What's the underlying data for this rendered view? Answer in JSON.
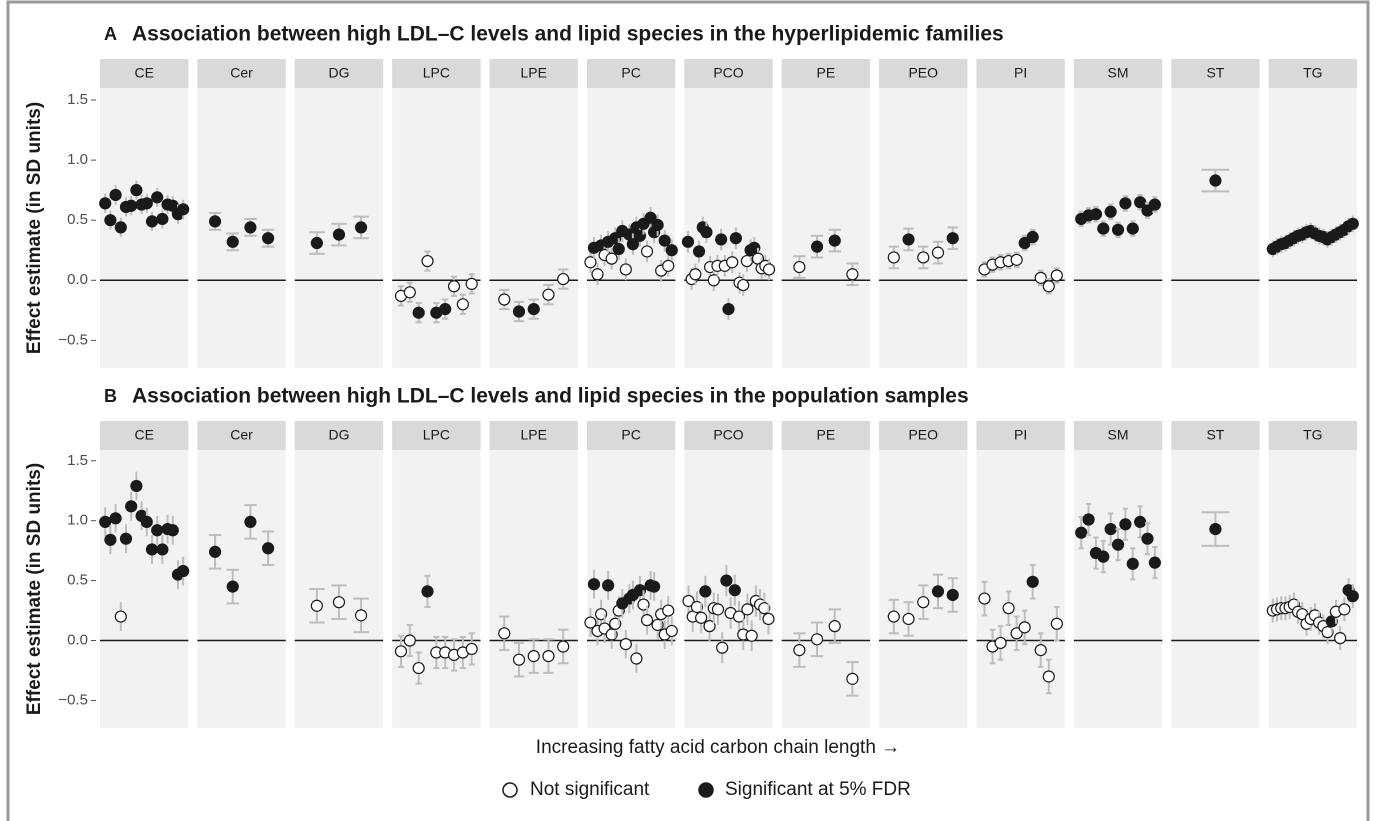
{
  "chart_data": [
    {
      "type": "pointrange",
      "panel": "A",
      "title": "Association between high LDL–C levels and lipid species in the hyperlipidemic families",
      "y_label": "Effect estimate (in SD units)",
      "ylim": [
        -0.73,
        1.6
      ],
      "yticks": [
        {
          "value": -0.5,
          "label": "−0.5"
        },
        {
          "value": 0,
          "label": "0.0"
        },
        0.5,
        {
          "value": 1,
          "label": "1.0"
        },
        1.5
      ],
      "facets": [
        {
          "name": "CE",
          "error": 0.08,
          "values": [
            0.64,
            0.5,
            0.71,
            0.44,
            0.61,
            0.62,
            0.75,
            0.63,
            0.64,
            0.49,
            0.69,
            0.51,
            0.63,
            0.62,
            0.55,
            0.59
          ],
          "significant": [
            1,
            1,
            1,
            1,
            1,
            1,
            1,
            1,
            1,
            1,
            1,
            1,
            1,
            1,
            1,
            1
          ]
        },
        {
          "name": "Cer",
          "error": 0.07,
          "values": [
            0.49,
            0.32,
            0.44,
            0.35
          ],
          "significant": [
            1,
            1,
            1,
            1
          ]
        },
        {
          "name": "DG",
          "error": 0.09,
          "values": [
            0.31,
            0.38,
            0.44
          ],
          "significant": [
            1,
            1,
            1
          ]
        },
        {
          "name": "LPC",
          "error": 0.08,
          "values": [
            -0.13,
            -0.1,
            -0.27,
            0.16,
            -0.27,
            -0.24,
            -0.05,
            -0.2,
            -0.03
          ],
          "significant": [
            0,
            0,
            1,
            0,
            1,
            1,
            0,
            0,
            0
          ]
        },
        {
          "name": "LPE",
          "error": 0.08,
          "values": [
            -0.16,
            -0.26,
            -0.24,
            -0.12,
            0.01
          ],
          "significant": [
            0,
            1,
            1,
            0,
            0
          ]
        },
        {
          "name": "PC",
          "error": 0.09,
          "values": [
            0.15,
            0.27,
            0.05,
            0.29,
            0.21,
            0.32,
            0.18,
            0.35,
            0.26,
            0.41,
            0.09,
            0.38,
            0.3,
            0.44,
            0.37,
            0.47,
            0.24,
            0.52,
            0.4,
            0.46,
            0.08,
            0.33,
            0.12,
            0.25
          ],
          "significant": [
            0,
            1,
            0,
            1,
            0,
            1,
            0,
            1,
            1,
            1,
            0,
            1,
            1,
            1,
            1,
            1,
            0,
            1,
            1,
            1,
            0,
            1,
            0,
            1
          ]
        },
        {
          "name": "PCO",
          "error": 0.09,
          "values": [
            0.32,
            0.01,
            0.05,
            0.24,
            0.44,
            0.4,
            0.11,
            0.0,
            0.12,
            0.34,
            0.12,
            -0.24,
            0.15,
            0.35,
            -0.02,
            -0.04,
            0.16,
            0.25,
            0.27,
            0.18,
            0.1,
            0.12,
            0.09
          ],
          "significant": [
            1,
            0,
            0,
            1,
            1,
            1,
            0,
            0,
            0,
            1,
            0,
            1,
            0,
            1,
            0,
            0,
            0,
            1,
            1,
            0,
            0,
            0,
            0
          ]
        },
        {
          "name": "PE",
          "error": 0.09,
          "values": [
            0.11,
            0.28,
            0.33,
            0.05
          ],
          "significant": [
            0,
            1,
            1,
            0
          ]
        },
        {
          "name": "PEO",
          "error": 0.09,
          "values": [
            0.19,
            0.34,
            0.19,
            0.23,
            0.35
          ],
          "significant": [
            0,
            1,
            0,
            0,
            1
          ]
        },
        {
          "name": "PI",
          "error": 0.06,
          "values": [
            0.09,
            0.13,
            0.15,
            0.16,
            0.17,
            0.31,
            0.36,
            0.02,
            -0.05,
            0.04
          ],
          "significant": [
            0,
            0,
            0,
            0,
            0,
            1,
            1,
            0,
            0,
            0
          ]
        },
        {
          "name": "SM",
          "error": 0.06,
          "values": [
            0.51,
            0.54,
            0.55,
            0.43,
            0.57,
            0.42,
            0.64,
            0.43,
            0.65,
            0.58,
            0.63
          ],
          "significant": [
            1,
            1,
            1,
            1,
            1,
            1,
            1,
            1,
            1,
            1,
            1
          ]
        },
        {
          "name": "ST",
          "error": 0.09,
          "values": [
            0.83
          ],
          "significant": [
            1
          ]
        },
        {
          "name": "TG",
          "error": 0.07,
          "values": [
            0.26,
            0.28,
            0.3,
            0.31,
            0.33,
            0.35,
            0.37,
            0.38,
            0.4,
            0.41,
            0.39,
            0.37,
            0.36,
            0.34,
            0.36,
            0.38,
            0.4,
            0.42,
            0.45,
            0.47
          ],
          "significant": [
            1,
            1,
            1,
            1,
            1,
            1,
            1,
            1,
            1,
            1,
            1,
            1,
            1,
            1,
            1,
            1,
            1,
            1,
            1,
            1
          ]
        }
      ]
    },
    {
      "type": "pointrange",
      "panel": "B",
      "title": "Association between high LDL–C levels and lipid species in the population samples",
      "y_label": "Effect estimate (in SD units)",
      "ylim": [
        -0.73,
        1.59
      ],
      "yticks": [
        {
          "value": -0.5,
          "label": "−0.5"
        },
        {
          "value": 0,
          "label": "0.0"
        },
        0.5,
        {
          "value": 1,
          "label": "1.0"
        },
        1.5
      ],
      "facets": [
        {
          "name": "CE",
          "error": 0.12,
          "values": [
            0.99,
            0.84,
            1.02,
            0.2,
            0.85,
            1.12,
            1.29,
            1.04,
            0.99,
            0.76,
            0.92,
            0.76,
            0.93,
            0.92,
            0.55,
            0.58
          ],
          "significant": [
            1,
            1,
            1,
            0,
            1,
            1,
            1,
            1,
            1,
            1,
            1,
            1,
            1,
            1,
            1,
            1
          ]
        },
        {
          "name": "Cer",
          "error": 0.14,
          "values": [
            0.74,
            0.45,
            0.99,
            0.77
          ],
          "significant": [
            1,
            1,
            1,
            1
          ]
        },
        {
          "name": "DG",
          "error": 0.14,
          "values": [
            0.29,
            0.32,
            0.21
          ],
          "significant": [
            0,
            0,
            0
          ]
        },
        {
          "name": "LPC",
          "error": 0.13,
          "values": [
            -0.09,
            0.0,
            -0.23,
            0.41,
            -0.1,
            -0.1,
            -0.12,
            -0.1,
            -0.07
          ],
          "significant": [
            0,
            0,
            0,
            1,
            0,
            0,
            0,
            0,
            0
          ]
        },
        {
          "name": "LPE",
          "error": 0.14,
          "values": [
            0.06,
            -0.16,
            -0.13,
            -0.13,
            -0.05
          ],
          "significant": [
            0,
            0,
            0,
            0,
            0
          ]
        },
        {
          "name": "PC",
          "error": 0.12,
          "values": [
            0.15,
            0.47,
            0.08,
            0.22,
            0.1,
            0.46,
            0.05,
            0.14,
            0.25,
            0.31,
            -0.03,
            0.35,
            0.38,
            -0.15,
            0.42,
            0.3,
            0.17,
            0.46,
            0.45,
            0.13,
            0.22,
            0.05,
            0.25,
            0.08
          ],
          "significant": [
            0,
            1,
            0,
            0,
            0,
            1,
            0,
            0,
            0,
            1,
            0,
            1,
            1,
            0,
            1,
            0,
            0,
            1,
            1,
            0,
            0,
            0,
            0,
            0
          ]
        },
        {
          "name": "PCO",
          "error": 0.13,
          "values": [
            0.33,
            0.2,
            0.28,
            0.19,
            0.41,
            0.12,
            0.27,
            0.26,
            -0.06,
            0.5,
            0.23,
            0.42,
            0.2,
            0.05,
            0.26,
            0.04,
            0.33,
            0.3,
            0.27,
            0.18
          ],
          "significant": [
            0,
            0,
            0,
            0,
            1,
            0,
            0,
            0,
            0,
            1,
            0,
            1,
            0,
            0,
            0,
            0,
            0,
            0,
            0,
            0
          ]
        },
        {
          "name": "PE",
          "error": 0.14,
          "values": [
            -0.08,
            0.01,
            0.12,
            -0.32
          ],
          "significant": [
            0,
            0,
            0,
            0
          ]
        },
        {
          "name": "PEO",
          "error": 0.14,
          "values": [
            0.2,
            0.18,
            0.32,
            0.41,
            0.38
          ],
          "significant": [
            0,
            0,
            0,
            1,
            1
          ]
        },
        {
          "name": "PI",
          "error": 0.14,
          "values": [
            0.35,
            -0.05,
            -0.02,
            0.27,
            0.06,
            0.11,
            0.49,
            -0.08,
            -0.3,
            0.14
          ],
          "significant": [
            0,
            0,
            0,
            0,
            0,
            0,
            1,
            0,
            0,
            0
          ]
        },
        {
          "name": "SM",
          "error": 0.13,
          "values": [
            0.9,
            1.01,
            0.73,
            0.7,
            0.93,
            0.8,
            0.97,
            0.64,
            0.99,
            0.85,
            0.65
          ],
          "significant": [
            1,
            1,
            1,
            1,
            1,
            1,
            1,
            1,
            1,
            1,
            1
          ]
        },
        {
          "name": "ST",
          "error": 0.14,
          "values": [
            0.93
          ],
          "significant": [
            1
          ]
        },
        {
          "name": "TG",
          "error": 0.1,
          "values": [
            0.25,
            0.26,
            0.27,
            0.27,
            0.28,
            0.3,
            0.24,
            0.22,
            0.14,
            0.18,
            0.21,
            0.15,
            0.12,
            0.07,
            0.16,
            0.24,
            0.02,
            0.26,
            0.42,
            0.37
          ],
          "significant": [
            0,
            0,
            0,
            0,
            0,
            0,
            0,
            0,
            0,
            0,
            0,
            0,
            0,
            0,
            1,
            0,
            0,
            0,
            1,
            1
          ]
        }
      ]
    }
  ],
  "x_label": "Increasing fatty acid carbon chain length →",
  "legend": {
    "not_significant": "Not significant",
    "significant": "Significant at 5% FDR"
  }
}
